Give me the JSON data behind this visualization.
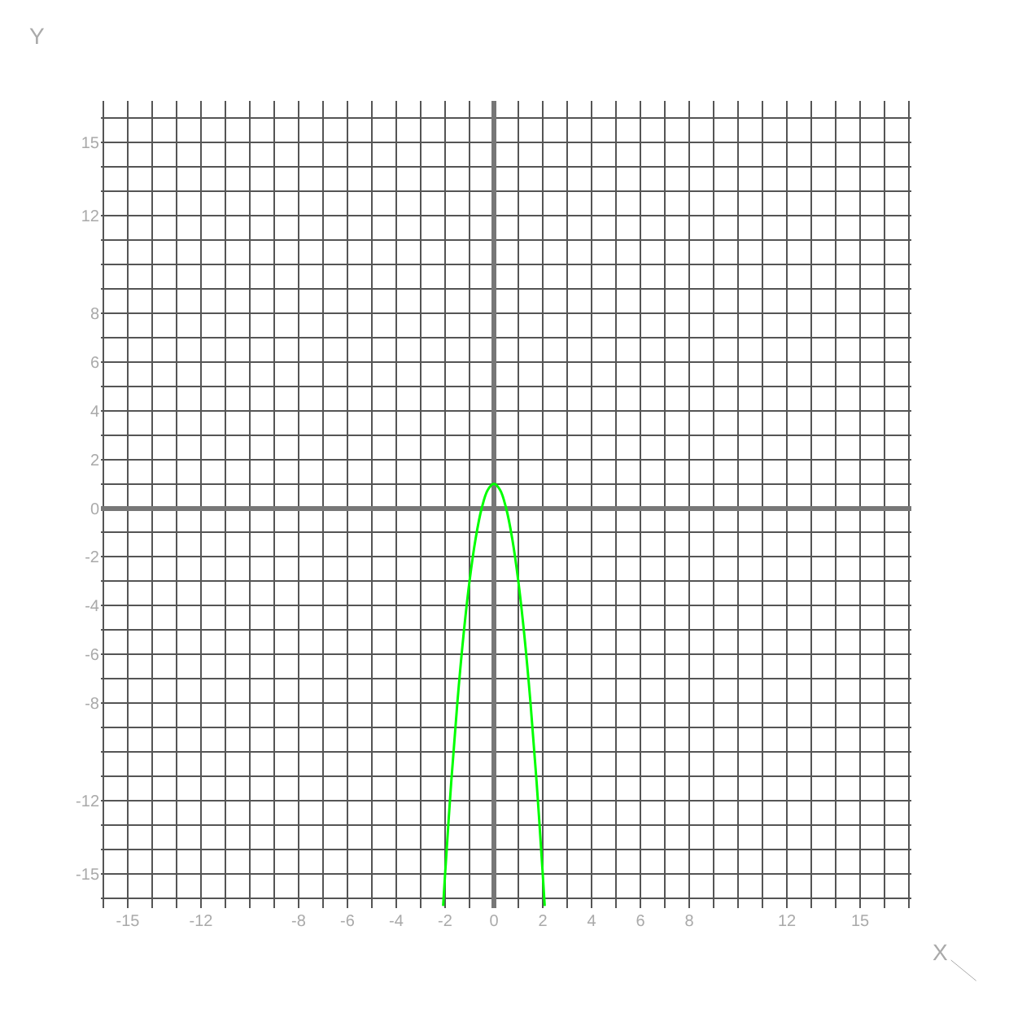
{
  "chart_data": {
    "type": "line",
    "xlabel": "X",
    "ylabel": "Y",
    "x": [
      -2.08,
      -2,
      -1.75,
      -1.5,
      -1.25,
      -1,
      -0.75,
      -0.5,
      -0.25,
      0,
      0.25,
      0.5,
      0.75,
      1,
      1.25,
      1.5,
      1.75,
      2,
      2.08
    ],
    "series": [
      {
        "color": "#00ff00",
        "values": [
          -16.31,
          -15,
          -11.25,
          -8,
          -5.25,
          -3,
          -1.25,
          0,
          0.75,
          1,
          0.75,
          0,
          -1.25,
          -3,
          -5.25,
          -8,
          -11.25,
          -15,
          -16.31
        ]
      }
    ],
    "xlim": [
      -16.1,
      17.1
    ],
    "ylim": [
      -16.4,
      16.7
    ],
    "xticks": [
      -15,
      -12,
      -8,
      -6,
      -4,
      -2,
      0,
      2,
      4,
      6,
      8,
      12,
      15
    ],
    "yticks": [
      -15,
      -12,
      -8,
      -6,
      -4,
      -2,
      0,
      2,
      4,
      6,
      8,
      12,
      15
    ],
    "grid": true,
    "marker": "none",
    "line_style": "solid"
  }
}
